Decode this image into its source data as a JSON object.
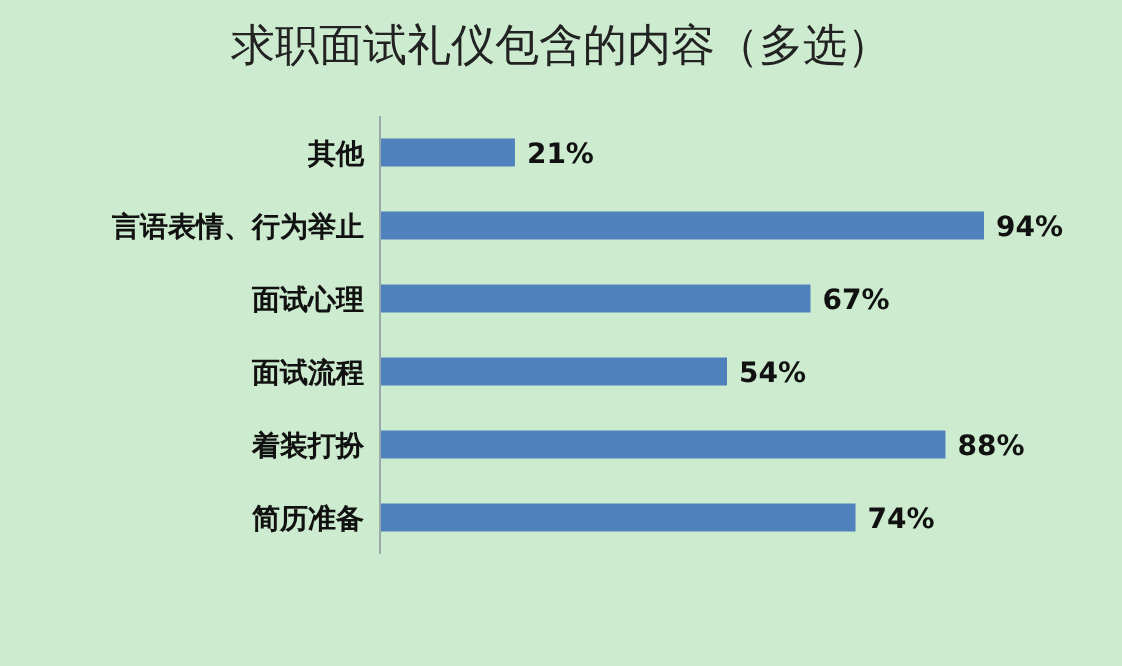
{
  "chart_data": {
    "type": "bar",
    "orientation": "horizontal",
    "title": "求职面试礼仪包含的内容（多选）",
    "categories": [
      "其他",
      "言语表情、行为举止",
      "面试心理",
      "面试流程",
      "着装打扮",
      "简历准备"
    ],
    "values": [
      21,
      94,
      67,
      54,
      88,
      74
    ],
    "value_labels": [
      "21%",
      "94%",
      "67%",
      "54%",
      "88%",
      "74%"
    ],
    "color": "#4f81bd"
  }
}
